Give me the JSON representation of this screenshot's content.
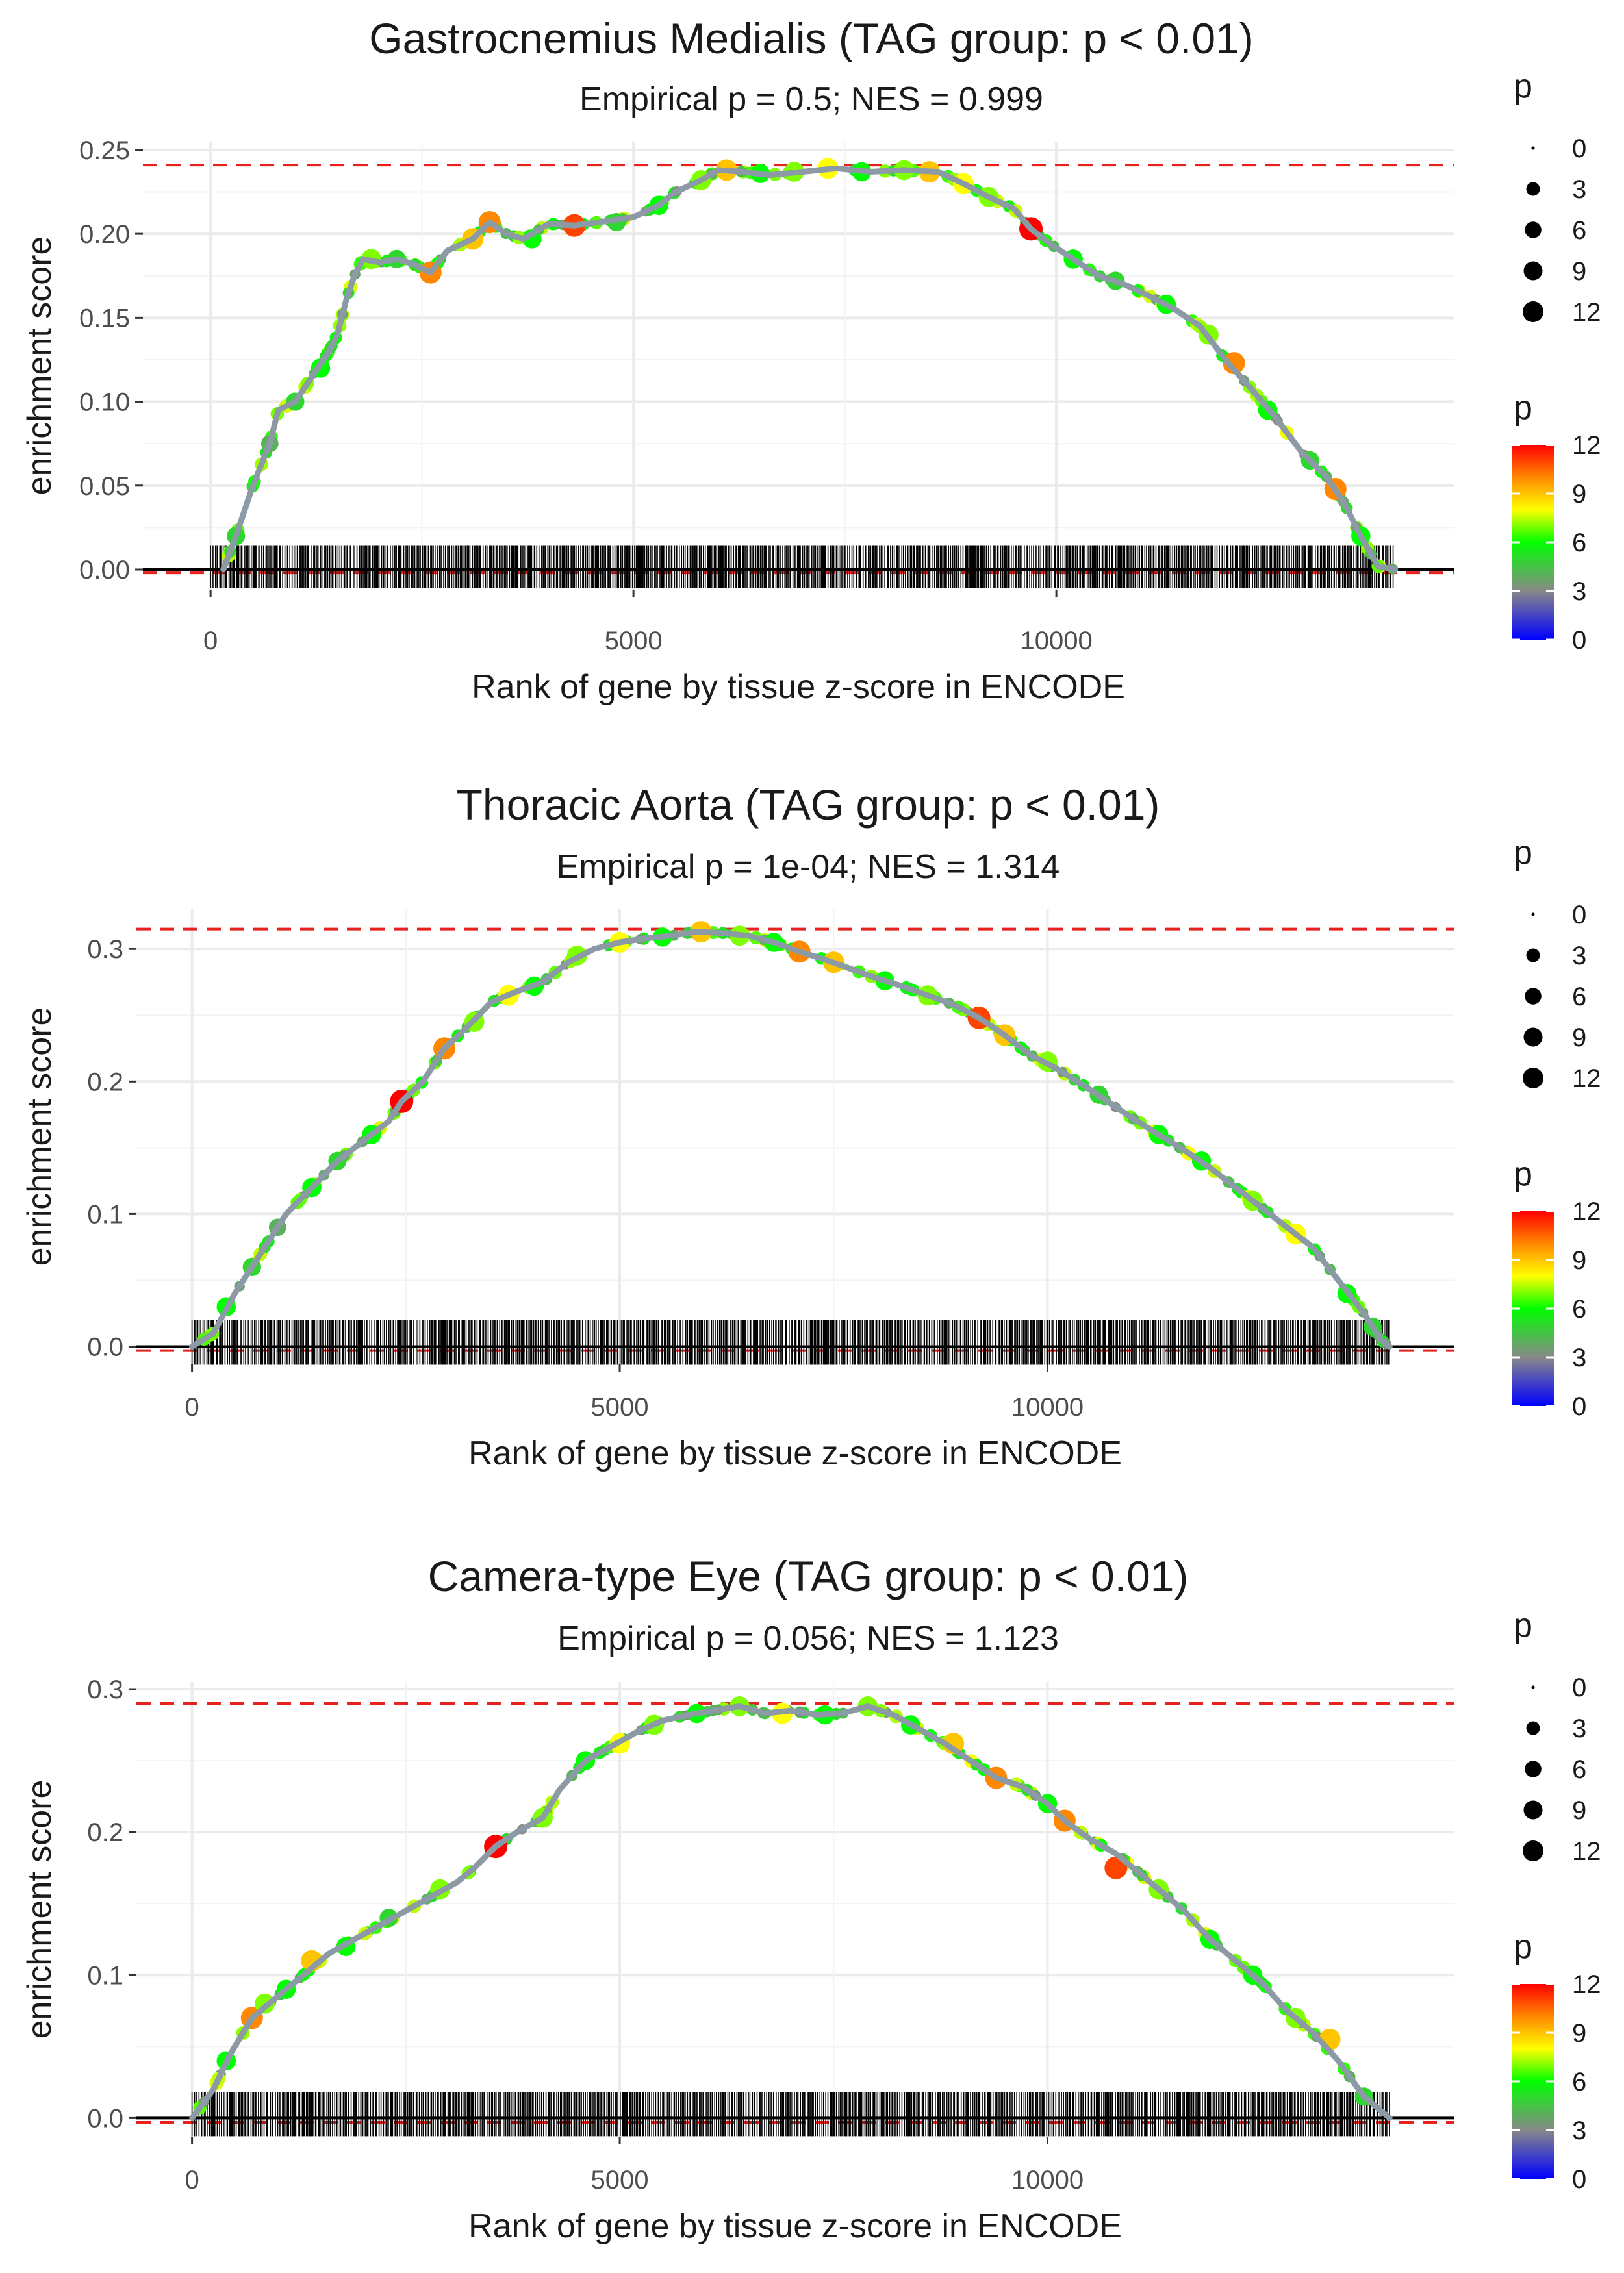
{
  "chart_data": [
    {
      "type": "line",
      "title": "Gastrocnemius Medialis (TAG group: p < 0.01)",
      "subtitle": "Empirical p = 0.5; NES = 0.999",
      "xlabel": "Rank of gene by tissue z-score in ENCODE",
      "ylabel": "enrichment score",
      "xlim": [
        -800,
        14700
      ],
      "ylim": [
        -0.012,
        0.255
      ],
      "xticks": [
        0,
        5000,
        10000
      ],
      "xtick_labels": [
        "0",
        "5000",
        "10000"
      ],
      "yticks": [
        0.0,
        0.05,
        0.1,
        0.15,
        0.2,
        0.25
      ],
      "ytick_labels": [
        "0.00",
        "0.05",
        "0.10",
        "0.15",
        "0.20",
        "0.25"
      ],
      "max_es_line": 0.241,
      "min_es_line": -0.002,
      "rug_x_range": [
        0,
        14000
      ],
      "rug_top": 0.0145,
      "grid": true,
      "curve": [
        [
          150,
          0.0
        ],
        [
          300,
          0.02
        ],
        [
          500,
          0.05
        ],
        [
          700,
          0.075
        ],
        [
          800,
          0.095
        ],
        [
          1000,
          0.1
        ],
        [
          1200,
          0.115
        ],
        [
          1400,
          0.13
        ],
        [
          1500,
          0.14
        ],
        [
          1600,
          0.16
        ],
        [
          1700,
          0.175
        ],
        [
          1800,
          0.185
        ],
        [
          2000,
          0.183
        ],
        [
          2200,
          0.185
        ],
        [
          2400,
          0.182
        ],
        [
          2600,
          0.177
        ],
        [
          2800,
          0.19
        ],
        [
          3100,
          0.197
        ],
        [
          3300,
          0.207
        ],
        [
          3500,
          0.2
        ],
        [
          3700,
          0.197
        ],
        [
          4000,
          0.206
        ],
        [
          4300,
          0.205
        ],
        [
          4600,
          0.207
        ],
        [
          5000,
          0.21
        ],
        [
          5300,
          0.217
        ],
        [
          5500,
          0.225
        ],
        [
          5800,
          0.232
        ],
        [
          6000,
          0.238
        ],
        [
          6300,
          0.237
        ],
        [
          6600,
          0.235
        ],
        [
          7000,
          0.237
        ],
        [
          7400,
          0.239
        ],
        [
          7800,
          0.237
        ],
        [
          8200,
          0.238
        ],
        [
          8600,
          0.237
        ],
        [
          8900,
          0.23
        ],
        [
          9200,
          0.222
        ],
        [
          9500,
          0.215
        ],
        [
          9700,
          0.203
        ],
        [
          9900,
          0.195
        ],
        [
          10200,
          0.185
        ],
        [
          10500,
          0.175
        ],
        [
          10800,
          0.17
        ],
        [
          11100,
          0.163
        ],
        [
          11400,
          0.155
        ],
        [
          11700,
          0.145
        ],
        [
          12000,
          0.125
        ],
        [
          12300,
          0.108
        ],
        [
          12600,
          0.09
        ],
        [
          12900,
          0.07
        ],
        [
          13200,
          0.055
        ],
        [
          13400,
          0.04
        ],
        [
          13600,
          0.02
        ],
        [
          13800,
          0.002
        ],
        [
          14000,
          0.0
        ]
      ],
      "points": [
        [
          300,
          0.02,
          5
        ],
        [
          700,
          0.075,
          4
        ],
        [
          1000,
          0.1,
          5
        ],
        [
          1300,
          0.12,
          6
        ],
        [
          1900,
          0.185,
          7
        ],
        [
          2200,
          0.185,
          5
        ],
        [
          2600,
          0.177,
          10
        ],
        [
          3100,
          0.197,
          9
        ],
        [
          3300,
          0.207,
          10
        ],
        [
          3800,
          0.197,
          6
        ],
        [
          4300,
          0.205,
          11
        ],
        [
          4800,
          0.207,
          5
        ],
        [
          5300,
          0.217,
          6
        ],
        [
          5800,
          0.232,
          7
        ],
        [
          6100,
          0.238,
          9
        ],
        [
          6500,
          0.236,
          6
        ],
        [
          6900,
          0.237,
          7
        ],
        [
          7300,
          0.239,
          8
        ],
        [
          7700,
          0.237,
          6
        ],
        [
          8200,
          0.238,
          7
        ],
        [
          8500,
          0.237,
          9
        ],
        [
          8900,
          0.23,
          8
        ],
        [
          9200,
          0.222,
          7
        ],
        [
          9700,
          0.203,
          12
        ],
        [
          10200,
          0.185,
          6
        ],
        [
          10700,
          0.172,
          5
        ],
        [
          11300,
          0.158,
          6
        ],
        [
          11800,
          0.14,
          7
        ],
        [
          12100,
          0.123,
          10
        ],
        [
          12500,
          0.095,
          6
        ],
        [
          13000,
          0.065,
          5
        ],
        [
          13300,
          0.048,
          10
        ],
        [
          13600,
          0.02,
          6
        ]
      ],
      "size_legend": {
        "title": "p",
        "values": [
          0,
          3,
          6,
          9,
          12
        ],
        "labels": [
          "0",
          "3",
          "6",
          "9",
          "12"
        ]
      },
      "color_legend": {
        "title": "p",
        "values": [
          0,
          3,
          6,
          9,
          12
        ],
        "labels": [
          "0",
          "3",
          "6",
          "9",
          "12"
        ]
      }
    },
    {
      "type": "line",
      "title": "Thoracic Aorta (TAG group: p < 0.01)",
      "subtitle": "Empirical p = 1e-04; NES = 1.314",
      "xlabel": "Rank of gene by tissue z-score in ENCODE",
      "ylabel": "enrichment score",
      "xlim": [
        -650,
        14750
      ],
      "ylim": [
        -0.013,
        0.33
      ],
      "xticks": [
        0,
        5000,
        10000
      ],
      "xtick_labels": [
        "0",
        "5000",
        "10000"
      ],
      "yticks": [
        0.0,
        0.1,
        0.2,
        0.3
      ],
      "ytick_labels": [
        "0.0",
        "0.1",
        "0.2",
        "0.3"
      ],
      "max_es_line": 0.315,
      "min_es_line": -0.003,
      "rug_x_range": [
        0,
        14000
      ],
      "rug_top": 0.02,
      "grid": true,
      "curve": [
        [
          0,
          0.0
        ],
        [
          250,
          0.01
        ],
        [
          500,
          0.04
        ],
        [
          800,
          0.07
        ],
        [
          1100,
          0.1
        ],
        [
          1400,
          0.12
        ],
        [
          1700,
          0.14
        ],
        [
          2000,
          0.155
        ],
        [
          2300,
          0.17
        ],
        [
          2450,
          0.185
        ],
        [
          2700,
          0.2
        ],
        [
          2950,
          0.225
        ],
        [
          3200,
          0.24
        ],
        [
          3500,
          0.26
        ],
        [
          3800,
          0.268
        ],
        [
          4100,
          0.275
        ],
        [
          4400,
          0.29
        ],
        [
          4700,
          0.3
        ],
        [
          5000,
          0.305
        ],
        [
          5300,
          0.308
        ],
        [
          5600,
          0.31
        ],
        [
          5900,
          0.313
        ],
        [
          6200,
          0.312
        ],
        [
          6500,
          0.31
        ],
        [
          6800,
          0.305
        ],
        [
          7100,
          0.298
        ],
        [
          7400,
          0.292
        ],
        [
          7700,
          0.285
        ],
        [
          8000,
          0.278
        ],
        [
          8300,
          0.272
        ],
        [
          8600,
          0.265
        ],
        [
          8900,
          0.258
        ],
        [
          9200,
          0.248
        ],
        [
          9500,
          0.235
        ],
        [
          9800,
          0.22
        ],
        [
          10100,
          0.21
        ],
        [
          10400,
          0.198
        ],
        [
          10700,
          0.185
        ],
        [
          11000,
          0.172
        ],
        [
          11300,
          0.16
        ],
        [
          11600,
          0.148
        ],
        [
          11900,
          0.135
        ],
        [
          12200,
          0.12
        ],
        [
          12500,
          0.105
        ],
        [
          12800,
          0.09
        ],
        [
          13100,
          0.075
        ],
        [
          13400,
          0.05
        ],
        [
          13700,
          0.025
        ],
        [
          13900,
          0.005
        ],
        [
          14000,
          0.0
        ]
      ],
      "points": [
        [
          400,
          0.03,
          6
        ],
        [
          700,
          0.06,
          5
        ],
        [
          1000,
          0.09,
          4
        ],
        [
          1400,
          0.12,
          6
        ],
        [
          1700,
          0.14,
          5
        ],
        [
          2100,
          0.16,
          6
        ],
        [
          2450,
          0.185,
          12
        ],
        [
          2950,
          0.225,
          10
        ],
        [
          3300,
          0.245,
          7
        ],
        [
          3700,
          0.265,
          8
        ],
        [
          4000,
          0.272,
          6
        ],
        [
          4500,
          0.295,
          7
        ],
        [
          5000,
          0.305,
          8
        ],
        [
          5500,
          0.309,
          6
        ],
        [
          5950,
          0.313,
          9
        ],
        [
          6400,
          0.31,
          7
        ],
        [
          6800,
          0.305,
          6
        ],
        [
          7100,
          0.298,
          10
        ],
        [
          7500,
          0.29,
          9
        ],
        [
          8100,
          0.276,
          6
        ],
        [
          8600,
          0.265,
          7
        ],
        [
          9200,
          0.248,
          11
        ],
        [
          9500,
          0.235,
          9
        ],
        [
          10000,
          0.215,
          7
        ],
        [
          10600,
          0.19,
          5
        ],
        [
          11300,
          0.16,
          6
        ],
        [
          11800,
          0.14,
          6
        ],
        [
          12400,
          0.11,
          7
        ],
        [
          12900,
          0.085,
          8
        ],
        [
          13500,
          0.04,
          6
        ],
        [
          13800,
          0.015,
          5
        ]
      ],
      "size_legend": {
        "title": "p",
        "values": [
          0,
          3,
          6,
          9,
          12
        ],
        "labels": [
          "0",
          "3",
          "6",
          "9",
          "12"
        ]
      },
      "color_legend": {
        "title": "p",
        "values": [
          0,
          3,
          6,
          9,
          12
        ],
        "labels": [
          "0",
          "3",
          "6",
          "9",
          "12"
        ]
      }
    },
    {
      "type": "line",
      "title": "Camera-type Eye (TAG group: p < 0.01)",
      "subtitle": "Empirical p = 0.056; NES = 1.123",
      "xlabel": "Rank of gene by tissue z-score in ENCODE",
      "ylabel": "enrichment score",
      "xlim": [
        -650,
        14750
      ],
      "ylim": [
        -0.013,
        0.305
      ],
      "xticks": [
        0,
        5000,
        10000
      ],
      "xtick_labels": [
        "0",
        "5000",
        "10000"
      ],
      "yticks": [
        0.0,
        0.1,
        0.2,
        0.3
      ],
      "ytick_labels": [
        "0.0",
        "0.1",
        "0.2",
        "0.3"
      ],
      "max_es_line": 0.29,
      "min_es_line": -0.003,
      "rug_x_range": [
        0,
        14000
      ],
      "rug_top": 0.018,
      "grid": true,
      "curve": [
        [
          0,
          0.0
        ],
        [
          250,
          0.02
        ],
        [
          450,
          0.045
        ],
        [
          700,
          0.07
        ],
        [
          1000,
          0.085
        ],
        [
          1300,
          0.1
        ],
        [
          1600,
          0.115
        ],
        [
          1900,
          0.125
        ],
        [
          2200,
          0.135
        ],
        [
          2500,
          0.145
        ],
        [
          2800,
          0.155
        ],
        [
          3100,
          0.165
        ],
        [
          3300,
          0.175
        ],
        [
          3550,
          0.19
        ],
        [
          3800,
          0.2
        ],
        [
          4100,
          0.21
        ],
        [
          4300,
          0.23
        ],
        [
          4600,
          0.25
        ],
        [
          4900,
          0.26
        ],
        [
          5200,
          0.27
        ],
        [
          5500,
          0.278
        ],
        [
          5800,
          0.282
        ],
        [
          6100,
          0.285
        ],
        [
          6400,
          0.288
        ],
        [
          6700,
          0.283
        ],
        [
          7000,
          0.285
        ],
        [
          7300,
          0.282
        ],
        [
          7600,
          0.283
        ],
        [
          7900,
          0.288
        ],
        [
          8200,
          0.282
        ],
        [
          8500,
          0.272
        ],
        [
          8800,
          0.262
        ],
        [
          9100,
          0.25
        ],
        [
          9400,
          0.238
        ],
        [
          9700,
          0.232
        ],
        [
          10000,
          0.22
        ],
        [
          10200,
          0.208
        ],
        [
          10500,
          0.195
        ],
        [
          10800,
          0.185
        ],
        [
          11000,
          0.175
        ],
        [
          11300,
          0.16
        ],
        [
          11600,
          0.145
        ],
        [
          11900,
          0.125
        ],
        [
          12200,
          0.11
        ],
        [
          12500,
          0.095
        ],
        [
          12800,
          0.075
        ],
        [
          13100,
          0.06
        ],
        [
          13400,
          0.04
        ],
        [
          13700,
          0.015
        ],
        [
          14000,
          0.0
        ]
      ],
      "points": [
        [
          400,
          0.04,
          6
        ],
        [
          700,
          0.07,
          10
        ],
        [
          850,
          0.08,
          7
        ],
        [
          1100,
          0.09,
          6
        ],
        [
          1400,
          0.11,
          9
        ],
        [
          1800,
          0.12,
          6
        ],
        [
          2300,
          0.14,
          5
        ],
        [
          2900,
          0.16,
          7
        ],
        [
          3550,
          0.19,
          12
        ],
        [
          4100,
          0.21,
          7
        ],
        [
          4600,
          0.25,
          6
        ],
        [
          5000,
          0.262,
          8
        ],
        [
          5400,
          0.275,
          7
        ],
        [
          5900,
          0.283,
          6
        ],
        [
          6400,
          0.288,
          7
        ],
        [
          6900,
          0.283,
          8
        ],
        [
          7400,
          0.282,
          6
        ],
        [
          7900,
          0.288,
          7
        ],
        [
          8400,
          0.275,
          6
        ],
        [
          8900,
          0.262,
          9
        ],
        [
          9400,
          0.238,
          10
        ],
        [
          10000,
          0.22,
          6
        ],
        [
          10200,
          0.208,
          10
        ],
        [
          10800,
          0.175,
          11
        ],
        [
          11300,
          0.16,
          7
        ],
        [
          11900,
          0.125,
          6
        ],
        [
          12400,
          0.1,
          6
        ],
        [
          12900,
          0.07,
          7
        ],
        [
          13300,
          0.055,
          9
        ],
        [
          13700,
          0.015,
          5
        ]
      ],
      "size_legend": {
        "title": "p",
        "values": [
          0,
          3,
          6,
          9,
          12
        ],
        "labels": [
          "0",
          "3",
          "6",
          "9",
          "12"
        ]
      },
      "color_legend": {
        "title": "p",
        "values": [
          0,
          3,
          6,
          9,
          12
        ],
        "labels": [
          "0",
          "3",
          "6",
          "9",
          "12"
        ]
      }
    }
  ],
  "colors": {
    "curve": "#8c9aa6",
    "reference_line": "#e8211f",
    "rug": "#000000",
    "grid": "#ebebeb",
    "gradient": [
      "#0000ff",
      "#888888",
      "#00ff00",
      "#ffff00",
      "#ff8800",
      "#ff0000"
    ]
  }
}
